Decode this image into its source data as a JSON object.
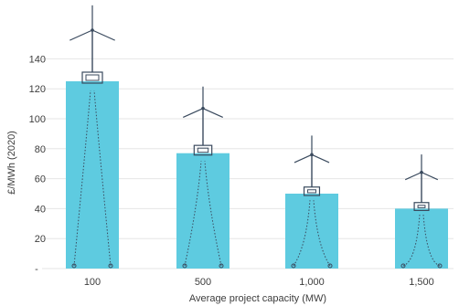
{
  "chart_data": {
    "type": "bar",
    "categories": [
      "100",
      "500",
      "1,000",
      "1,500"
    ],
    "values": [
      125,
      77,
      50,
      40
    ],
    "xlabel": "Average project capacity (MW)",
    "ylabel": "£/MWh (2020)",
    "ylim": [
      0,
      160
    ],
    "yticks": [
      20,
      40,
      60,
      80,
      100,
      120,
      140
    ],
    "ytick_labels": [
      "20",
      "40",
      "60",
      "80",
      "100",
      "120",
      "140"
    ],
    "grid": true,
    "colors": {
      "bar": "#5ecbe0",
      "grid": "#e6e6e6",
      "turbine": "#3a4a5e"
    },
    "decoration": "wind-turbine-icon"
  }
}
